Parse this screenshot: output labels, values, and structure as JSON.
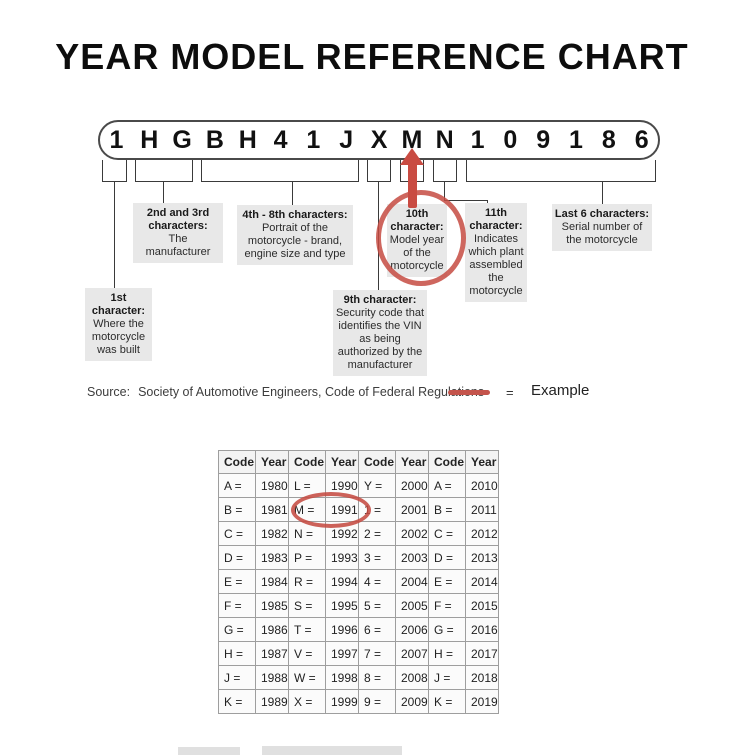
{
  "title": "YEAR MODEL REFERENCE CHART",
  "vin": {
    "characters": [
      "1",
      "H",
      "G",
      "B",
      "H",
      "4",
      "1",
      "J",
      "X",
      "M",
      "N",
      "1",
      "0",
      "9",
      "1",
      "8",
      "6"
    ],
    "highlighted_character": "M"
  },
  "callouts": {
    "first": {
      "header": "1st character:",
      "body": "Where the motorcycle was built"
    },
    "second_third": {
      "header": "2nd and 3rd characters:",
      "body": "The manufacturer"
    },
    "fourth_eighth": {
      "header": "4th - 8th characters:",
      "body": "Portrait of the motorcycle - brand, engine size and type"
    },
    "ninth": {
      "header": "9th character:",
      "body": "Security code that identifies the VIN as being authorized by the manufacturer"
    },
    "tenth": {
      "header": "10th character:",
      "body": "Model year of the motorcycle"
    },
    "eleventh": {
      "header": "11th character:",
      "body": "Indicates which plant assembled the motorcycle"
    },
    "last_six": {
      "header": "Last 6 characters:",
      "body": "Serial number of the motorcycle"
    }
  },
  "legend": {
    "source_label": "Source:",
    "source_text": "Society of Automotive Engineers, Code of Federal Regulations",
    "equals_sign": "=",
    "example_label": "Example"
  },
  "year_table": {
    "headers": [
      "Code",
      "Year",
      "Code",
      "Year",
      "Code",
      "Year",
      "Code",
      "Year"
    ],
    "rows": [
      [
        "A =",
        "1980",
        "L =",
        "1990",
        "Y =",
        "2000",
        "A =",
        "2010"
      ],
      [
        "B =",
        "1981",
        "M =",
        "1991",
        "1 =",
        "2001",
        "B =",
        "2011"
      ],
      [
        "C =",
        "1982",
        "N =",
        "1992",
        "2 =",
        "2002",
        "C =",
        "2012"
      ],
      [
        "D =",
        "1983",
        "P =",
        "1993",
        "3 =",
        "2003",
        "D =",
        "2013"
      ],
      [
        "E =",
        "1984",
        "R =",
        "1994",
        "4 =",
        "2004",
        "E =",
        "2014"
      ],
      [
        "F =",
        "1985",
        "S =",
        "1995",
        "5 =",
        "2005",
        "F =",
        "2015"
      ],
      [
        "G =",
        "1986",
        "T =",
        "1996",
        "6 =",
        "2006",
        "G =",
        "2016"
      ],
      [
        "H =",
        "1987",
        "V =",
        "1997",
        "7 =",
        "2007",
        "H =",
        "2017"
      ],
      [
        "J =",
        "1988",
        "W =",
        "1998",
        "8 =",
        "2008",
        "J =",
        "2018"
      ],
      [
        "K =",
        "1989",
        "X =",
        "1999",
        "9 =",
        "2009",
        "K =",
        "2019"
      ]
    ],
    "circled_example": {
      "code": "M =",
      "year": "1991"
    }
  },
  "colors": {
    "accent_red": "#c94b42",
    "callout_bg": "#e8e8e8",
    "line_color": "#3a3a3a"
  }
}
